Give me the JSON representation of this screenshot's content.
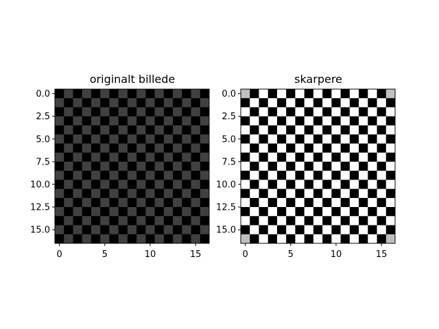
{
  "chart_data": [
    {
      "type": "heatmap",
      "title": "originalt billede",
      "grid_size": 17,
      "pattern": "checkerboard",
      "colormap": "gray",
      "cell_values": {
        "even": 0.0,
        "odd": 0.25
      },
      "corner_value": null,
      "xlim": [
        -0.5,
        16.5
      ],
      "ylim": [
        16.5,
        -0.5
      ],
      "x_ticks": [
        {
          "value": 0,
          "label": "0"
        },
        {
          "value": 5,
          "label": "5"
        },
        {
          "value": 10,
          "label": "10"
        },
        {
          "value": 15,
          "label": "15"
        }
      ],
      "y_ticks": [
        {
          "value": 0.0,
          "label": "0.0"
        },
        {
          "value": 2.5,
          "label": "2.5"
        },
        {
          "value": 5.0,
          "label": "5.0"
        },
        {
          "value": 7.5,
          "label": "7.5"
        },
        {
          "value": 10.0,
          "label": "10.0"
        },
        {
          "value": 12.5,
          "label": "12.5"
        },
        {
          "value": 15.0,
          "label": "15.0"
        }
      ]
    },
    {
      "type": "heatmap",
      "title": "skarpere",
      "grid_size": 17,
      "pattern": "checkerboard",
      "colormap": "gray",
      "cell_values": {
        "even": 1.0,
        "odd": 0.0
      },
      "corner_value": 0.75,
      "xlim": [
        -0.5,
        16.5
      ],
      "ylim": [
        16.5,
        -0.5
      ],
      "x_ticks": [
        {
          "value": 0,
          "label": "0"
        },
        {
          "value": 5,
          "label": "5"
        },
        {
          "value": 10,
          "label": "10"
        },
        {
          "value": 15,
          "label": "15"
        }
      ],
      "y_ticks": [
        {
          "value": 0.0,
          "label": "0.0"
        },
        {
          "value": 2.5,
          "label": "2.5"
        },
        {
          "value": 5.0,
          "label": "5.0"
        },
        {
          "value": 7.5,
          "label": "7.5"
        },
        {
          "value": 10.0,
          "label": "10.0"
        },
        {
          "value": 12.5,
          "label": "12.5"
        },
        {
          "value": 15.0,
          "label": "15.0"
        }
      ]
    }
  ]
}
